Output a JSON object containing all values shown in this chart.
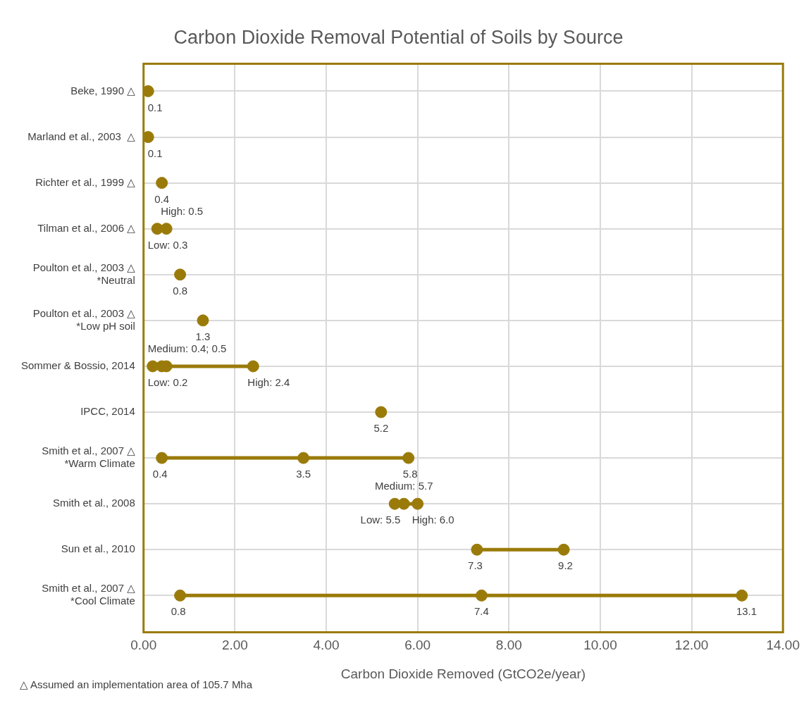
{
  "chart_data": {
    "type": "scatter",
    "orientation": "horizontal",
    "title": "Carbon Dioxide Removal Potential of Soils by Source",
    "xlabel": "Carbon Dioxide Removed (GtCO2e/year)",
    "categories": [
      "Beke, 1990 △",
      "Marland et al., 2003  △",
      "Richter et al., 1999 △",
      "Tilman et al., 2006 △",
      "Poulton et al., 2003 △\n*Neutral",
      "Poulton et al., 2003 △\n*Low pH soil",
      "Sommer & Bossio, 2014",
      "IPCC, 2014",
      "Smith et al., 2007 △\n*Warm Climate",
      "Smith et al., 2008",
      "Sun et al., 2010",
      "Smith et al., 2007 △\n*Cool Climate"
    ],
    "series": [
      {
        "type": "scatter",
        "color": "#9a7b0a",
        "values": [
          0.1,
          0.1,
          0.4,
          0.3,
          0.8,
          1.3,
          0.2,
          5.2,
          0.4,
          5.5,
          7.3,
          0.8
        ],
        "value_labels": [
          "0.1",
          "0.1",
          "0.4",
          "Low: 0.3",
          "0.8",
          "1.3",
          "Low: 0.2",
          "5.2",
          "0.4",
          "Low: 5.5",
          "7.3",
          "0.8"
        ]
      },
      {
        "type": "scatter",
        "color": "#9a7b0a",
        "values": [
          null,
          null,
          null,
          0.5,
          null,
          null,
          0.4,
          null,
          3.5,
          5.7,
          9.2,
          7.4
        ],
        "value_labels": [
          null,
          null,
          null,
          "High: 0.5",
          null,
          null,
          "Medium: 0.4; 0.5",
          null,
          "3.5",
          "Medium: 5.7",
          "9.2",
          "7.4"
        ]
      },
      {
        "type": "scatter",
        "color": "#9a7b0a",
        "values": [
          null,
          null,
          null,
          null,
          null,
          null,
          0.5,
          null,
          5.8,
          6.0,
          null,
          13.1
        ],
        "value_labels": [
          null,
          null,
          null,
          null,
          null,
          null,
          null,
          null,
          "5.8",
          "High: 6.0",
          null,
          "13.1"
        ]
      },
      {
        "type": "scatter",
        "color": "#9a7b0a",
        "values": [
          null,
          null,
          null,
          null,
          null,
          null,
          2.4,
          null,
          null,
          null,
          null,
          null
        ],
        "value_labels": [
          null,
          null,
          null,
          null,
          null,
          null,
          "High: 2.4",
          null,
          null,
          null,
          null,
          null
        ]
      }
    ],
    "xlim": [
      0,
      14
    ],
    "xticks": [
      {
        "value": 0,
        "label": "0.00"
      },
      {
        "value": 2,
        "label": "2.00"
      },
      {
        "value": 4,
        "label": "4.00"
      },
      {
        "value": 6,
        "label": "6.00"
      },
      {
        "value": 8,
        "label": "8.00"
      },
      {
        "value": 10,
        "label": "10.00"
      },
      {
        "value": 12,
        "label": "12.00"
      },
      {
        "value": 14,
        "label": "14.00"
      }
    ],
    "grid": true,
    "legend": false,
    "marker": "circle",
    "annotations": [
      "△ Assumed an implementation area of 105.7 Mha"
    ]
  }
}
